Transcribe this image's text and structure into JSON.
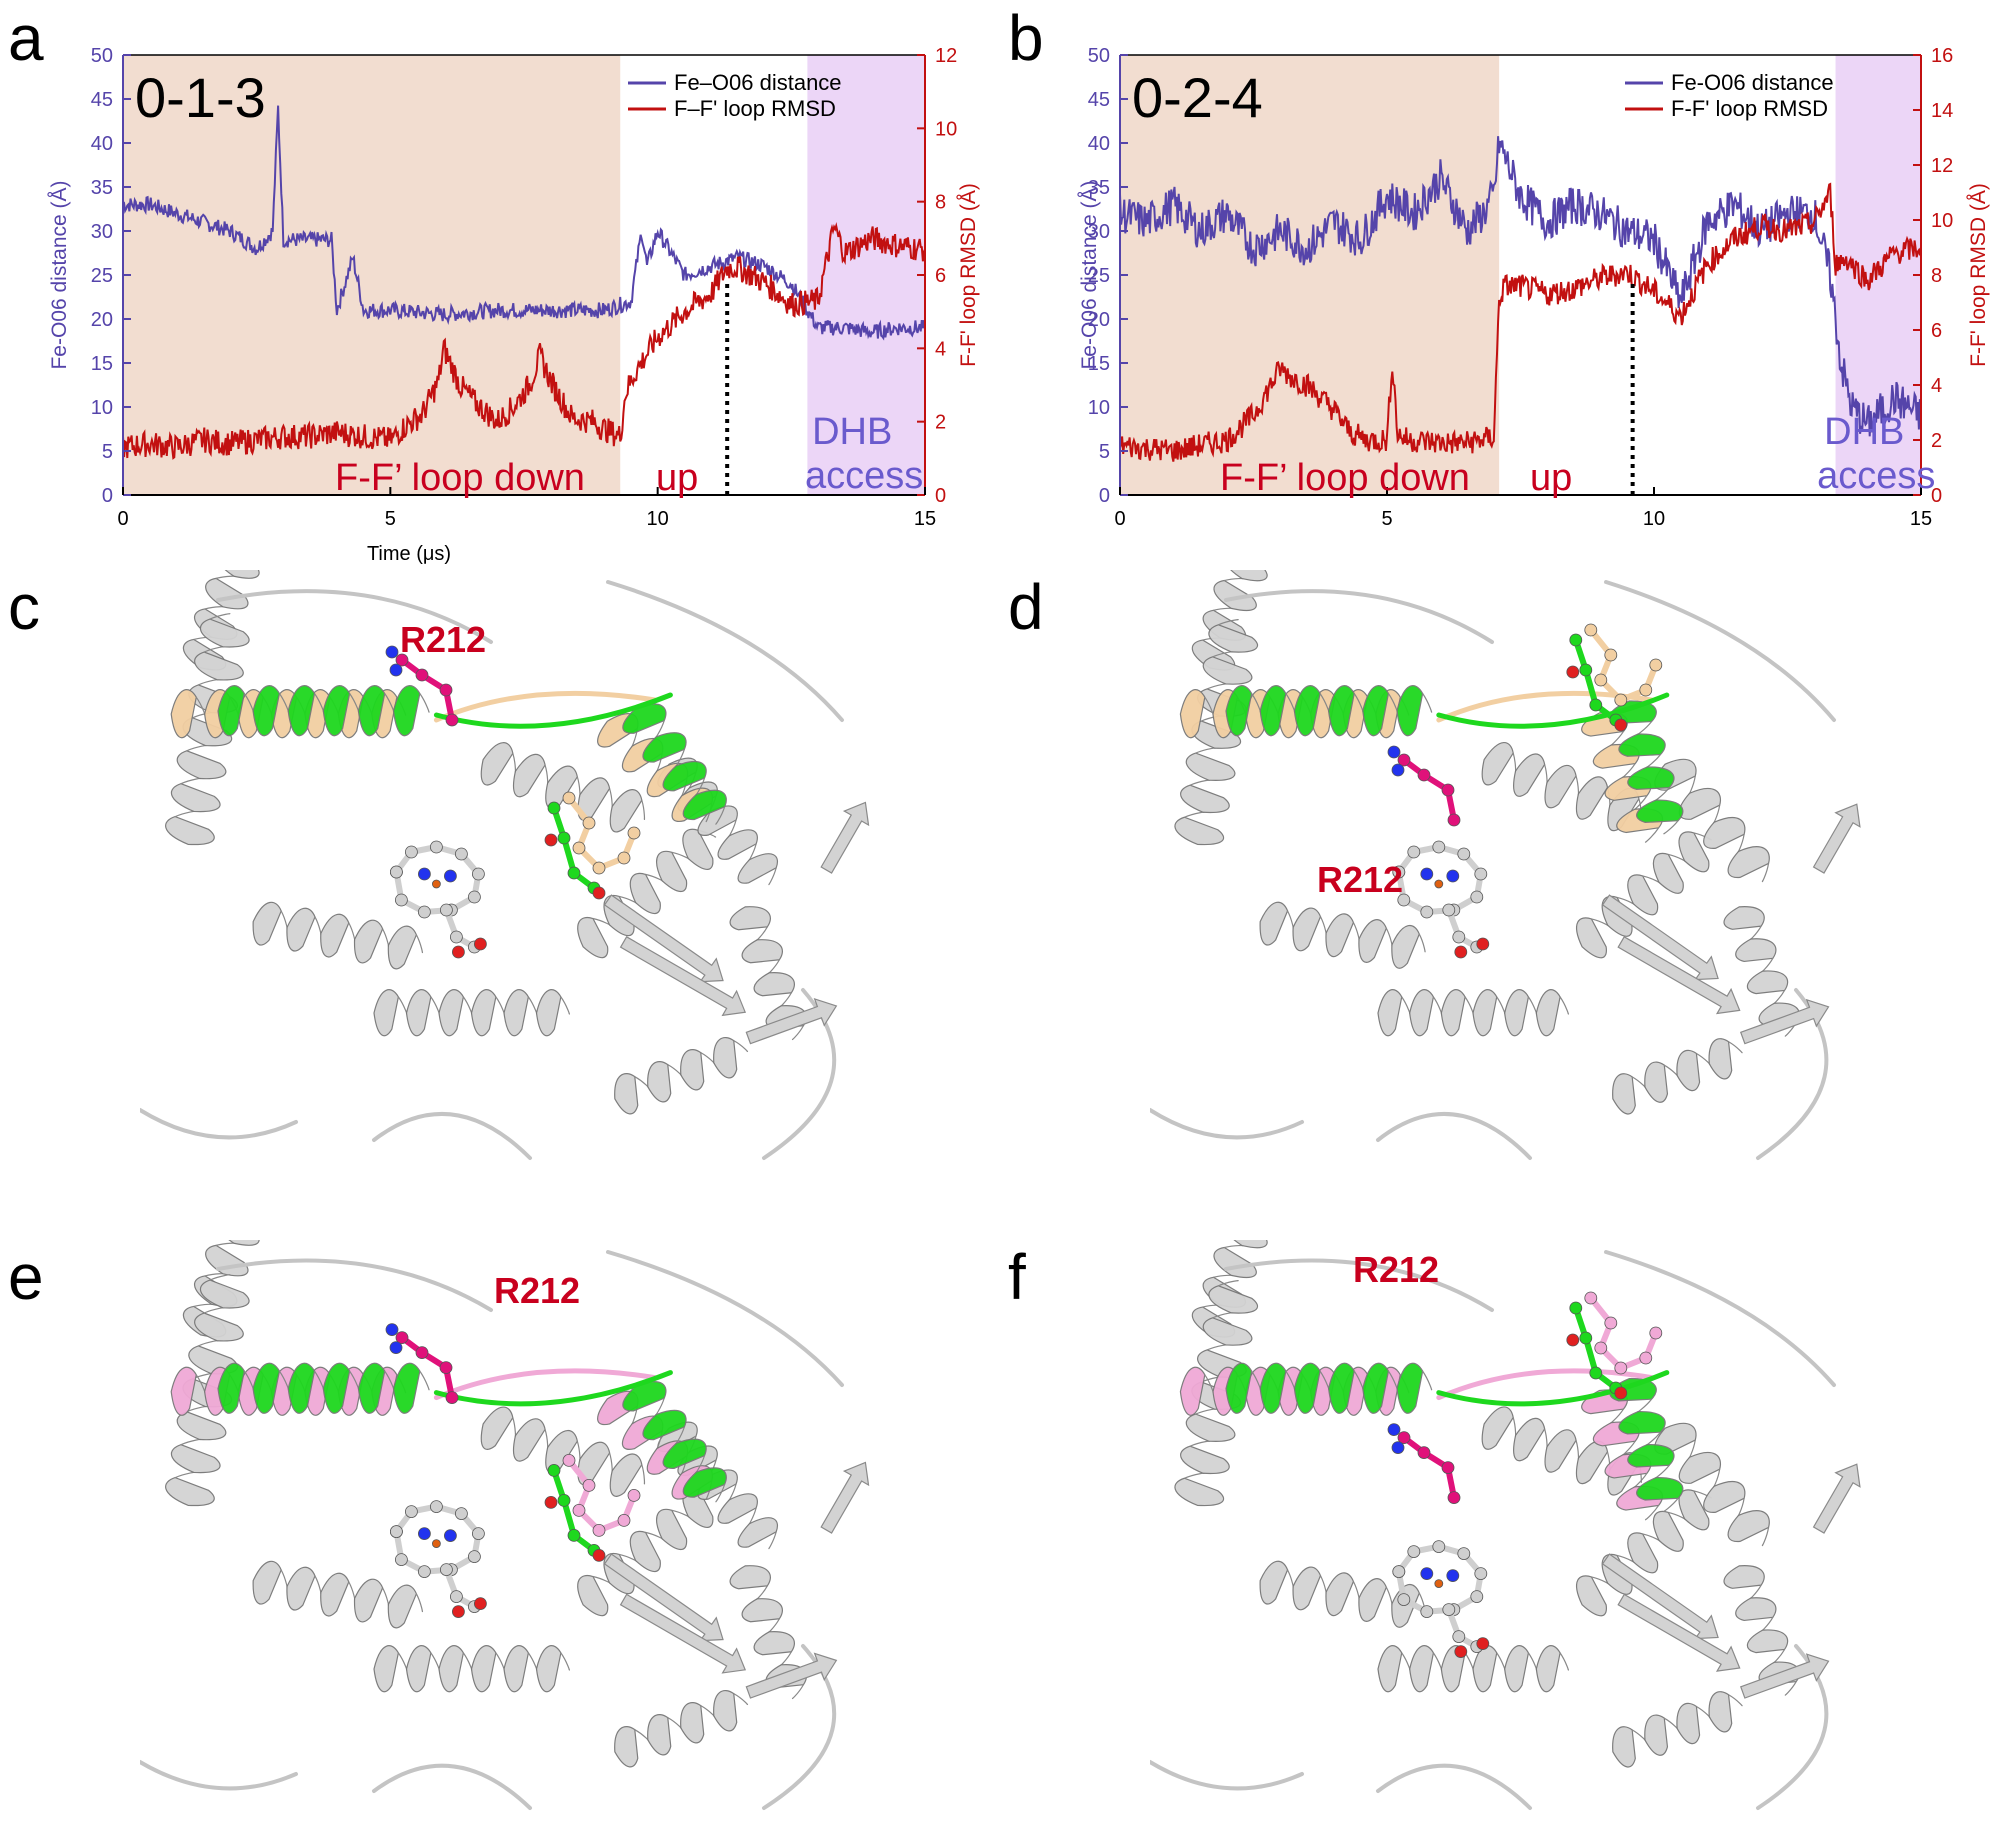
{
  "panels": {
    "a": "a",
    "b": "b",
    "c": "c",
    "d": "d",
    "e": "e",
    "f": "f"
  },
  "colors": {
    "distance": "#5544aa",
    "rmsd": "#c21010",
    "down_region": "#f2ddd0",
    "access_region": "#ecd6f7",
    "protein": "#d3d3d3",
    "helix_green": "#1ed81e",
    "helix_tan": "#f2cfa2",
    "helix_pink": "#f0a9d6",
    "arg": "#e0117a",
    "label_red": "#c8001e",
    "access_text": "#6a5acd"
  },
  "residue_label": "R212",
  "chart_data": [
    {
      "type": "line",
      "panel": "a",
      "title": "0-1-3",
      "xlabel": "Time (μs)",
      "ylabel": "Fe-O06 distance (Å)",
      "y2label": "F-F' loop RMSD (Å)",
      "xlim": [
        0,
        15
      ],
      "ylim": [
        0,
        50
      ],
      "y2lim": [
        0,
        12
      ],
      "xticks": [
        "0",
        "5",
        "10",
        "15"
      ],
      "yticks": [
        "0",
        "5",
        "10",
        "15",
        "20",
        "25",
        "30",
        "35",
        "40",
        "45",
        "50"
      ],
      "y2ticks": [
        "0",
        "2",
        "4",
        "6",
        "8",
        "10",
        "12"
      ],
      "legend": [
        "Fe–O06 distance",
        "F–F' loop RMSD"
      ],
      "legend_position": "top-right",
      "regions": [
        {
          "label": "",
          "x": [
            0,
            9.3
          ],
          "kind": "down"
        },
        {
          "label": "",
          "x": [
            12.8,
            15
          ],
          "kind": "access"
        }
      ],
      "annotations": {
        "down": "F-F’ loop down",
        "up": "up",
        "access": [
          "DHB",
          "access"
        ],
        "divider_x": 11.3
      },
      "series": [
        {
          "name": "Fe–O06 distance",
          "axis": "left",
          "x": [
            0,
            0.5,
            1,
            1.5,
            2,
            2.5,
            2.8,
            2.9,
            3,
            3.5,
            3.9,
            4,
            4.3,
            4.5,
            5,
            6,
            7,
            8,
            9,
            9.5,
            9.7,
            9.8,
            10,
            10.5,
            11,
            11.5,
            12,
            12.5,
            13,
            13.5,
            14,
            14.5,
            15
          ],
          "y": [
            33,
            33,
            32,
            31,
            30,
            28,
            30,
            44,
            29,
            29,
            29,
            21,
            27,
            21,
            21,
            20.5,
            21,
            21,
            21,
            22,
            30,
            26,
            30,
            25,
            26,
            27,
            26,
            24,
            19,
            19,
            18.5,
            19,
            19
          ]
        },
        {
          "name": "F–F' loop RMSD",
          "axis": "right",
          "x": [
            0,
            0.5,
            1,
            1.5,
            2,
            2.5,
            3,
            3.5,
            4,
            4.5,
            5,
            5.3,
            5.6,
            5.9,
            6,
            6.3,
            6.6,
            7,
            7.3,
            7.6,
            7.8,
            8,
            8.4,
            8.8,
            9,
            9.3,
            9.4,
            9.6,
            10,
            10.5,
            11,
            11.3,
            11.5,
            12,
            12.5,
            13,
            13.3,
            13.5,
            14,
            14.5,
            15
          ],
          "y": [
            1.3,
            1.4,
            1.3,
            1.5,
            1.4,
            1.5,
            1.6,
            1.6,
            1.7,
            1.6,
            1.5,
            1.9,
            2.2,
            3.1,
            4,
            3.0,
            2.5,
            2.0,
            2.4,
            3.0,
            3.8,
            3.1,
            2.1,
            2.0,
            1.8,
            1.6,
            2.8,
            3.4,
            4.3,
            5.0,
            5.5,
            6.2,
            6.2,
            5.8,
            5.2,
            5.3,
            7.3,
            6.6,
            7.0,
            6.8,
            6.7
          ]
        }
      ]
    },
    {
      "type": "line",
      "panel": "b",
      "title": "0-2-4",
      "xlabel": "",
      "ylabel": "Fe-O06 distance (Å)",
      "y2label": "F-F' loop RMSD (Å)",
      "xlim": [
        0,
        15
      ],
      "ylim": [
        0,
        50
      ],
      "y2lim": [
        0,
        16
      ],
      "xticks": [
        "0",
        "5",
        "10",
        "15"
      ],
      "yticks": [
        "0",
        "5",
        "10",
        "15",
        "20",
        "25",
        "30",
        "35",
        "40",
        "45",
        "50"
      ],
      "y2ticks": [
        "0",
        "2",
        "4",
        "6",
        "8",
        "10",
        "12",
        "14",
        "16"
      ],
      "legend": [
        "Fe-O06 distance",
        "F-F' loop RMSD"
      ],
      "legend_position": "top-right",
      "regions": [
        {
          "label": "",
          "x": [
            0,
            7.1
          ],
          "kind": "down"
        },
        {
          "label": "",
          "x": [
            13.4,
            15
          ],
          "kind": "access"
        }
      ],
      "annotations": {
        "down": "F-F’ loop down",
        "up": "up",
        "access": [
          "DHB",
          "access"
        ],
        "divider_x": 9.6
      },
      "series": [
        {
          "name": "Fe-O06 distance",
          "axis": "left",
          "x": [
            0,
            0.5,
            1,
            1.5,
            2,
            2.5,
            3,
            3.5,
            4,
            4.5,
            5,
            5.5,
            6,
            6.5,
            6.8,
            7,
            7.1,
            7.5,
            8,
            8.5,
            9,
            9.5,
            10,
            10.5,
            11,
            11.5,
            12,
            12.5,
            13,
            13.3,
            13.5,
            13.7,
            14,
            14.5,
            15
          ],
          "y": [
            32,
            31,
            33,
            30,
            32,
            28,
            30,
            28,
            31,
            29,
            34,
            32,
            36,
            30,
            32,
            34,
            40,
            34,
            31,
            33,
            32,
            30,
            29,
            22,
            31,
            33,
            30,
            32,
            32,
            25,
            15,
            10,
            8,
            11,
            9
          ]
        },
        {
          "name": "F-F' loop RMSD",
          "axis": "right",
          "x": [
            0,
            0.5,
            1,
            1.5,
            2,
            2.5,
            3,
            3.2,
            3.5,
            4,
            4.3,
            4.6,
            5,
            5.1,
            5.2,
            5.4,
            6,
            6.5,
            7,
            7.1,
            7.2,
            7.5,
            8,
            8.5,
            9,
            9.5,
            10,
            10.5,
            11,
            11.5,
            12,
            12.5,
            13,
            13.3,
            13.4,
            13.6,
            14,
            14.5,
            15
          ],
          "y": [
            1.8,
            1.7,
            1.6,
            1.8,
            2.0,
            2.9,
            4.6,
            4.3,
            4.0,
            3.1,
            2.3,
            2.0,
            2.0,
            4.9,
            2.2,
            2.0,
            1.9,
            1.9,
            2.1,
            7.1,
            7.6,
            7.6,
            7.3,
            7.5,
            7.9,
            8.1,
            7.4,
            6.5,
            8.4,
            9.3,
            9.8,
            9.6,
            9.9,
            11,
            8.4,
            8.6,
            7.8,
            8.8,
            9.0
          ]
        }
      ]
    }
  ]
}
